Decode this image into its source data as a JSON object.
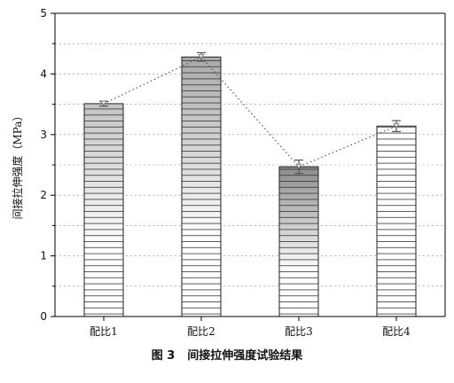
{
  "caption": {
    "figure_no": "图 3",
    "title": "间接拉伸强度试验结果"
  },
  "chart_data": {
    "type": "bar",
    "categories": [
      "配比1",
      "配比2",
      "配比3",
      "配比4"
    ],
    "values": [
      3.51,
      4.28,
      2.47,
      3.14
    ],
    "error": [
      0.04,
      0.07,
      0.11,
      0.09
    ],
    "ylabel": "间接拉伸强度（MPa）",
    "ylim": [
      0,
      5
    ],
    "yticks": [
      "0",
      "1",
      "2",
      "3",
      "4",
      "5"
    ],
    "grid": true,
    "trend_line": "dotted",
    "colors": {
      "bar_stroke": "#222222",
      "hatch": "#333333",
      "grid": "#8a8a8a",
      "trend": "#555555",
      "errorbar": "#555555"
    }
  }
}
